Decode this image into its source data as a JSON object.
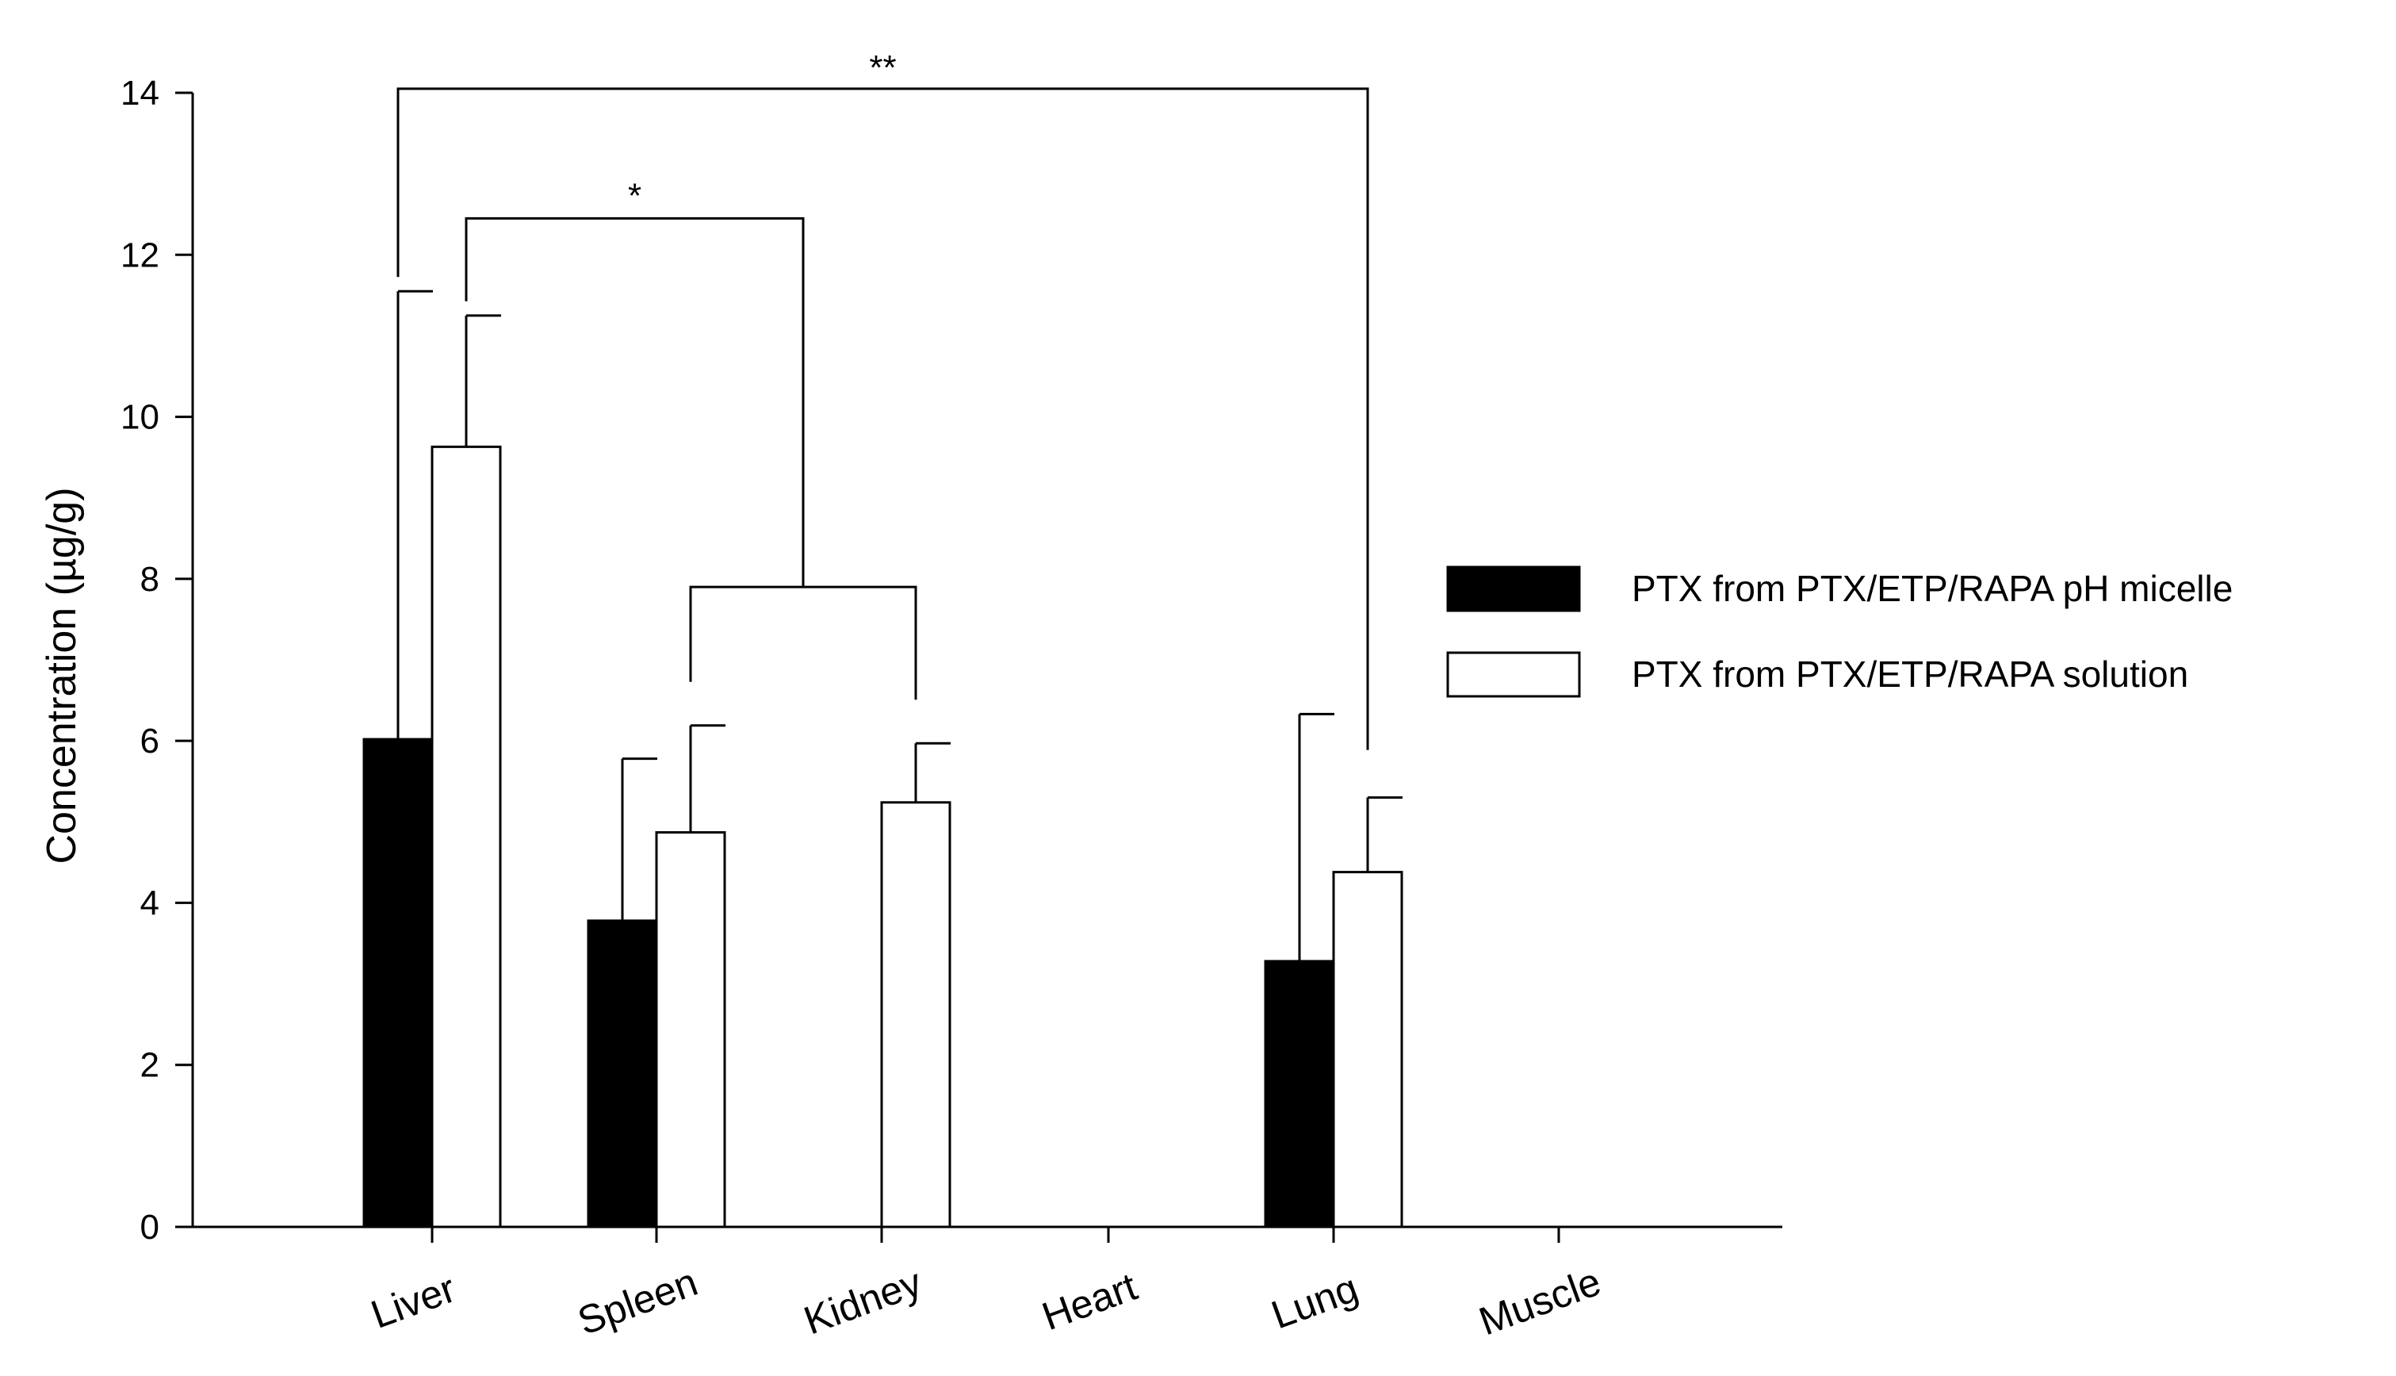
{
  "chart_data": {
    "type": "bar",
    "ylabel": "Concentration (µg/g)",
    "xlabel": "",
    "ylim": [
      0,
      14
    ],
    "yticks": [
      0,
      2,
      4,
      6,
      8,
      10,
      12,
      14
    ],
    "grid": false,
    "legend_position": "right",
    "categories": [
      "Liver",
      "Spleen",
      "Kidney",
      "Heart",
      "Lung",
      "Muscle"
    ],
    "series": [
      {
        "name": "PTX from PTX/ETP/RAPA pH micelle",
        "color": "#000000",
        "values": [
          6.02,
          3.78,
          null,
          null,
          3.28,
          null
        ],
        "errors": [
          5.53,
          2.0,
          null,
          null,
          3.05,
          null
        ]
      },
      {
        "name": "PTX from PTX/ETP/RAPA solution",
        "color": "#ffffff",
        "values": [
          9.63,
          4.87,
          5.24,
          null,
          4.38,
          null
        ],
        "errors": [
          1.62,
          1.32,
          0.73,
          null,
          0.92,
          null
        ]
      }
    ],
    "annotations": [
      {
        "text": "**",
        "from": "Liver (pH micelle)",
        "to": "Lung (solution)",
        "y": 14.05
      },
      {
        "text": "*",
        "from": "Liver (solution)",
        "to": "Spleen + Kidney (solution)",
        "y": 12.45
      },
      {
        "text": "",
        "from": "Spleen (solution)",
        "to": "Kidney (solution)",
        "y": 7.9
      }
    ]
  }
}
